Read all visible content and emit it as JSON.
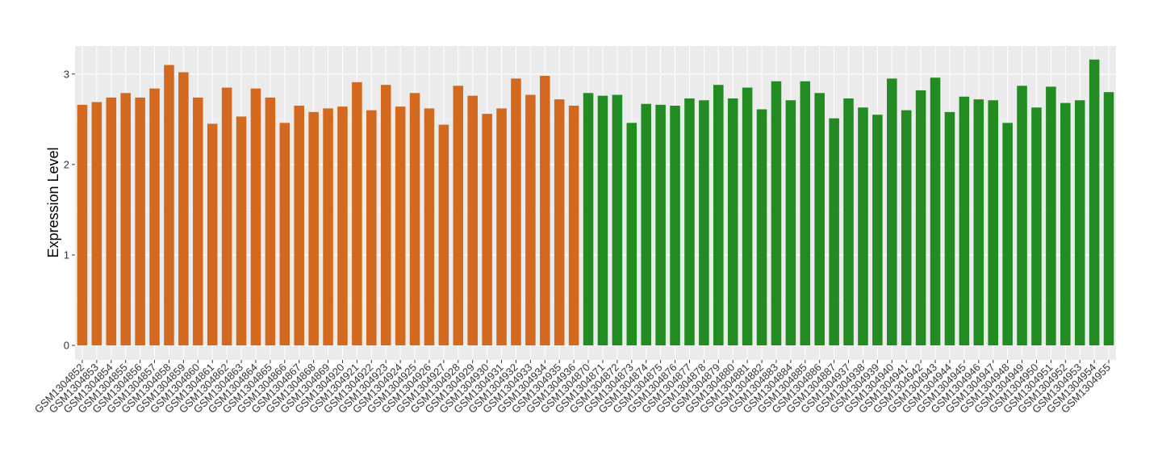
{
  "chart_data": {
    "type": "bar",
    "y_label": "Expression Level",
    "categories": [
      "GSM1304852",
      "GSM1304853",
      "GSM1304854",
      "GSM1304855",
      "GSM1304856",
      "GSM1304857",
      "GSM1304858",
      "GSM1304859",
      "GSM1304860",
      "GSM1304861",
      "GSM1304862",
      "GSM1304863",
      "GSM1304864",
      "GSM1304865",
      "GSM1304866",
      "GSM1304867",
      "GSM1304868",
      "GSM1304869",
      "GSM1304920",
      "GSM1304921",
      "GSM1304922",
      "GSM1304923",
      "GSM1304924",
      "GSM1304925",
      "GSM1304926",
      "GSM1304927",
      "GSM1304928",
      "GSM1304929",
      "GSM1304930",
      "GSM1304931",
      "GSM1304932",
      "GSM1304933",
      "GSM1304934",
      "GSM1304935",
      "GSM1304936",
      "GSM1304870",
      "GSM1304871",
      "GSM1304872",
      "GSM1304873",
      "GSM1304874",
      "GSM1304875",
      "GSM1304876",
      "GSM1304877",
      "GSM1304878",
      "GSM1304879",
      "GSM1304880",
      "GSM1304881",
      "GSM1304882",
      "GSM1304883",
      "GSM1304884",
      "GSM1304885",
      "GSM1304886",
      "GSM1304887",
      "GSM1304937",
      "GSM1304938",
      "GSM1304939",
      "GSM1304940",
      "GSM1304941",
      "GSM1304942",
      "GSM1304943",
      "GSM1304944",
      "GSM1304945",
      "GSM1304946",
      "GSM1304947",
      "GSM1304948",
      "GSM1304949",
      "GSM1304950",
      "GSM1304951",
      "GSM1304952",
      "GSM1304953",
      "GSM1304954",
      "GSM1304955"
    ],
    "values": [
      2.66,
      2.69,
      2.74,
      2.79,
      2.74,
      2.84,
      3.1,
      3.02,
      2.74,
      2.45,
      2.85,
      2.53,
      2.84,
      2.74,
      2.46,
      2.65,
      2.58,
      2.62,
      2.64,
      2.91,
      2.6,
      2.88,
      2.64,
      2.79,
      2.62,
      2.44,
      2.87,
      2.76,
      2.56,
      2.62,
      2.95,
      2.77,
      2.98,
      2.72,
      2.65,
      2.79,
      2.76,
      2.77,
      2.46,
      2.67,
      2.66,
      2.65,
      2.73,
      2.71,
      2.88,
      2.73,
      2.85,
      2.61,
      2.92,
      2.71,
      2.92,
      2.79,
      2.51,
      2.73,
      2.63,
      2.55,
      2.95,
      2.6,
      2.82,
      2.96,
      2.58,
      2.75,
      2.72,
      2.71,
      2.46,
      2.87,
      2.63,
      2.86,
      2.68,
      2.71,
      3.16,
      2.8
    ],
    "colors": [
      "#d2691e",
      "#d2691e",
      "#d2691e",
      "#d2691e",
      "#d2691e",
      "#d2691e",
      "#d2691e",
      "#d2691e",
      "#d2691e",
      "#d2691e",
      "#d2691e",
      "#d2691e",
      "#d2691e",
      "#d2691e",
      "#d2691e",
      "#d2691e",
      "#d2691e",
      "#d2691e",
      "#d2691e",
      "#d2691e",
      "#d2691e",
      "#d2691e",
      "#d2691e",
      "#d2691e",
      "#d2691e",
      "#d2691e",
      "#d2691e",
      "#d2691e",
      "#d2691e",
      "#d2691e",
      "#d2691e",
      "#d2691e",
      "#d2691e",
      "#d2691e",
      "#d2691e",
      "#228b22",
      "#228b22",
      "#228b22",
      "#228b22",
      "#228b22",
      "#228b22",
      "#228b22",
      "#228b22",
      "#228b22",
      "#228b22",
      "#228b22",
      "#228b22",
      "#228b22",
      "#228b22",
      "#228b22",
      "#228b22",
      "#228b22",
      "#228b22",
      "#228b22",
      "#228b22",
      "#228b22",
      "#228b22",
      "#228b22",
      "#228b22",
      "#228b22",
      "#228b22",
      "#228b22",
      "#228b22",
      "#228b22",
      "#228b22",
      "#228b22",
      "#228b22",
      "#228b22",
      "#228b22",
      "#228b22",
      "#228b22",
      "#228b22"
    ],
    "ylim": [
      -0.16,
      3.31
    ],
    "yticks": [
      0,
      1,
      2,
      3
    ],
    "grid": true
  }
}
